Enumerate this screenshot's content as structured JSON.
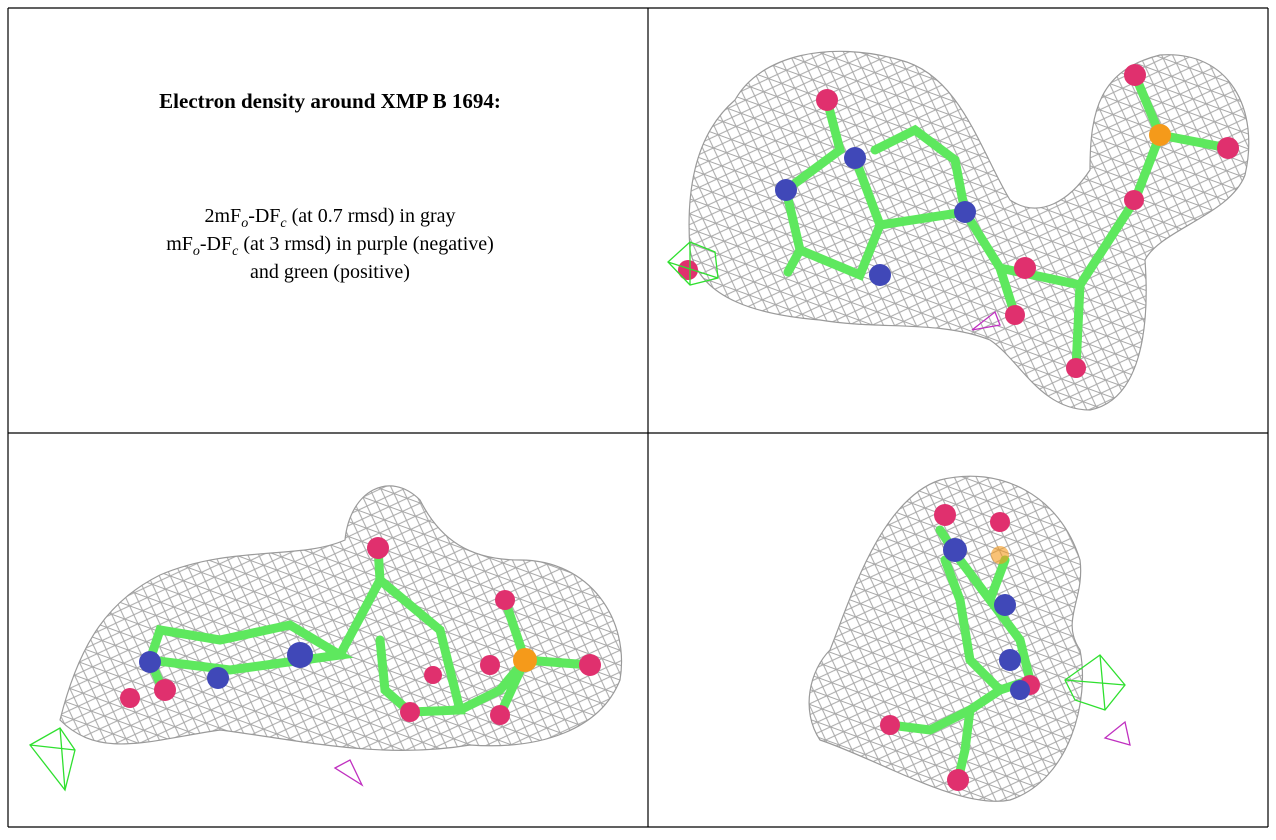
{
  "figure": {
    "title": "Electron density around XMP B 1694:",
    "legend_lines": [
      [
        "2mF",
        "o",
        "-DF",
        "c",
        " (at 0.7 rmsd) in gray"
      ],
      [
        "mF",
        "o",
        "-DF",
        "c",
        " (at 3 rmsd) in purple (negative)"
      ],
      [
        "and green (positive)"
      ]
    ]
  }
}
